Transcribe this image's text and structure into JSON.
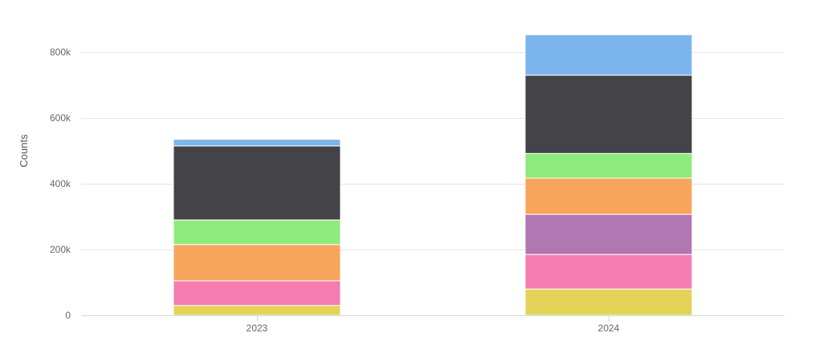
{
  "chart_data": {
    "type": "bar",
    "stacked": true,
    "title": "",
    "xlabel": "",
    "ylabel": "Counts",
    "ylim": [
      0,
      850000
    ],
    "y_ticks": [
      0,
      200000,
      400000,
      600000,
      800000
    ],
    "y_tick_labels": [
      "0",
      "200k",
      "400k",
      "600k",
      "800k"
    ],
    "grid": true,
    "legend": "none",
    "categories": [
      "2023",
      "2024"
    ],
    "series": [
      {
        "color": "#e3d356",
        "values": [
          30000,
          80000
        ]
      },
      {
        "color": "#f47cb0",
        "values": [
          75000,
          105000
        ]
      },
      {
        "color": "#b077b2",
        "values": [
          0,
          122000
        ]
      },
      {
        "color": "#f7a45c",
        "values": [
          110000,
          110000
        ]
      },
      {
        "color": "#8eea7c",
        "values": [
          75000,
          75000
        ]
      },
      {
        "color": "#434348",
        "values": [
          225000,
          238000
        ]
      },
      {
        "color": "#7cb5ec",
        "values": [
          20000,
          123000
        ]
      }
    ]
  }
}
